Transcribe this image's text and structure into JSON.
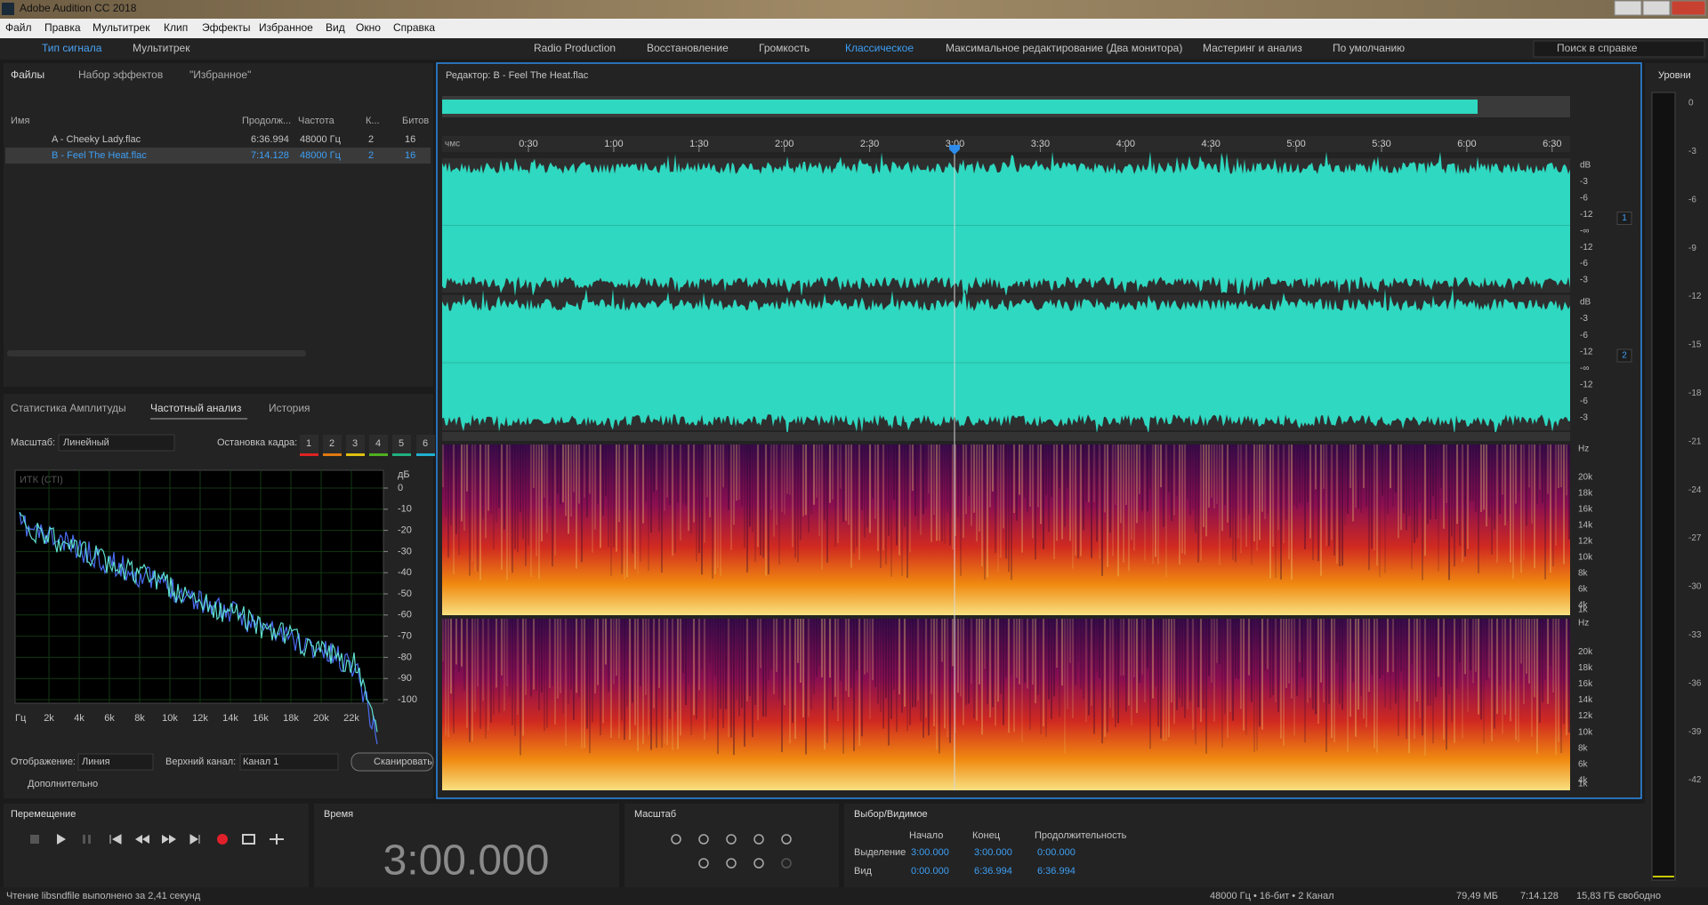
{
  "window": {
    "title": "Adobe Audition CC 2018"
  },
  "menu": [
    "Файл",
    "Правка",
    "Мультитрек",
    "Клип",
    "Эффекты",
    "Избранное",
    "Вид",
    "Окно",
    "Справка"
  ],
  "toolbar": {
    "modes": [
      "Тип сигнала",
      "Мультитрек"
    ],
    "workspaces": [
      "Radio Production",
      "Восстановление",
      "Громкость",
      "Классическое",
      "Максимальное редактирование (Два монитора)",
      "Мастеринг и анализ",
      "По умолчанию"
    ],
    "search": "Поиск в справке"
  },
  "files_panel": {
    "tabs": [
      "Файлы",
      "Набор эффектов",
      "\"Избранное\""
    ],
    "columns": [
      "Имя",
      "Продолж...",
      "Частота",
      "К...",
      "Битов"
    ],
    "rows": [
      [
        "A - Cheeky Lady.flac",
        "6:36.994",
        "48000 Гц",
        "2",
        "16"
      ],
      [
        "B - Feel The Heat.flac",
        "7:14.128",
        "48000 Гц",
        "2",
        "16"
      ]
    ]
  },
  "frequency_panel": {
    "tabs": [
      "Статистика Амплитуды",
      "Частотный анализ",
      "История"
    ],
    "scale_label": "Масштаб:",
    "scale_value": "Линейный",
    "freeze_label": "Остановка кадра:",
    "freeze_slots": [
      "1",
      "2",
      "3",
      "4",
      "5",
      "6"
    ],
    "graph": {
      "legend": "ИТК (СТI)",
      "y_unit": "дБ",
      "yticks": [
        "0",
        "-10",
        "-20",
        "-30",
        "-40",
        "-50",
        "-60",
        "-70",
        "-80",
        "-90",
        "-100"
      ],
      "x_unit": "Гц",
      "xticks": [
        "2k",
        "4k",
        "6k",
        "8k",
        "10k",
        "12k",
        "14k",
        "16k",
        "18k",
        "20k",
        "22k"
      ]
    },
    "display_label": "Отображение:",
    "display_value": "Линия",
    "channel_label": "Верхний канал:",
    "channel_value": "Канал 1",
    "scan_button": "Сканировать",
    "advanced": "Дополнительно"
  },
  "editor": {
    "title": "Редактор: B - Feel The Heat.flac",
    "ruler_unit": "чмс",
    "ruler": [
      "0:30",
      "1:00",
      "1:30",
      "2:00",
      "2:30",
      "3:00",
      "3:30",
      "4:00",
      "4:30",
      "5:00",
      "5:30",
      "6:00",
      "6:30"
    ],
    "db_scale": [
      "dB",
      "-3",
      "-6",
      "-12",
      "-∞",
      "-12",
      "-6",
      "-3"
    ],
    "hz_scale": [
      "Hz",
      "20k",
      "18k",
      "16k",
      "14k",
      "12k",
      "10k",
      "8k",
      "6k",
      "4k",
      "1k"
    ],
    "channels": [
      "1",
      "2"
    ]
  },
  "levels": {
    "title": "Уровни",
    "scale": [
      "0",
      "-3",
      "-6",
      "-9",
      "-12",
      "-15",
      "-18",
      "-21",
      "-24",
      "-27",
      "-30",
      "-33",
      "-36",
      "-39",
      "-42"
    ]
  },
  "transport": {
    "title": "Перемещение"
  },
  "time": {
    "title": "Время",
    "value": "3:00.000"
  },
  "zoom": {
    "title": "Масштаб"
  },
  "selection": {
    "title": "Выбор/Видимое",
    "columns": [
      "Начало",
      "Конец",
      "Продолжительность"
    ],
    "rows": [
      {
        "label": "Выделение",
        "values": [
          "3:00.000",
          "3:00.000",
          "0:00.000"
        ]
      },
      {
        "label": "Вид",
        "values": [
          "0:00.000",
          "6:36.994",
          "6:36.994"
        ]
      }
    ]
  },
  "status": {
    "message": "Чтение libsndfile выполнено за 2,41 секунд",
    "format": "48000 Гц • 16-бит • 2 Канал",
    "size": "79,49 МБ",
    "duration": "7:14.128",
    "free": "15,83 ГБ свободно"
  }
}
